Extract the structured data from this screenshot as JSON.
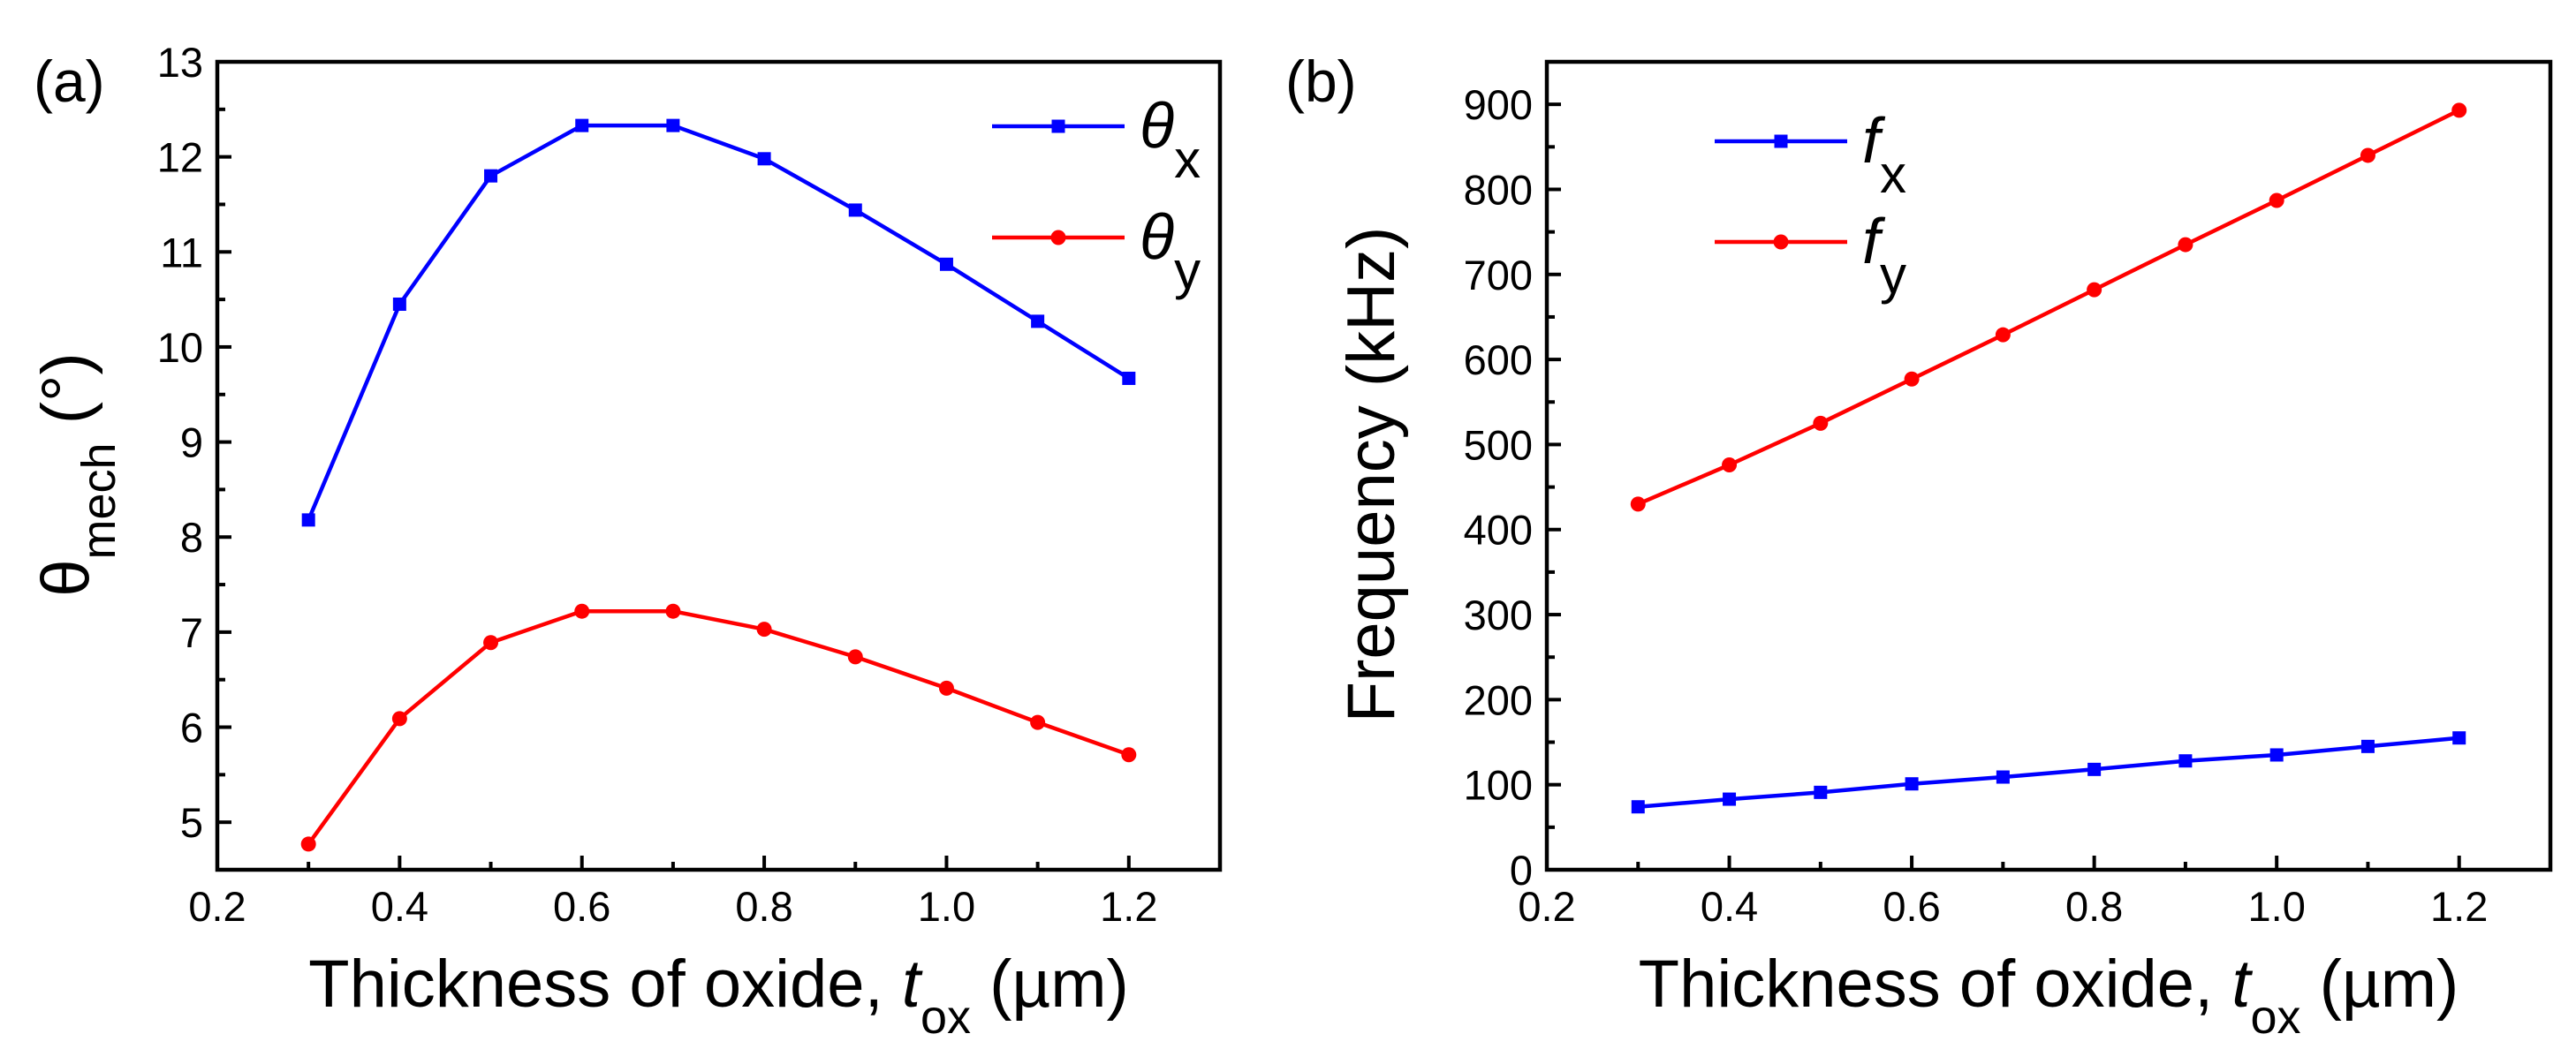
{
  "chart_data": [
    {
      "type": "line",
      "panel_label": "(a)",
      "xlabel": {
        "main": "Thickness of oxide, ",
        "var": "t",
        "sub": "ox",
        "unit": " (µm)"
      },
      "ylabel": {
        "main": "θ",
        "sub": "mech",
        "unit": " (°)"
      },
      "xlim": [
        0.2,
        1.3
      ],
      "ylim": [
        4.5,
        13
      ],
      "xticks": [
        0.2,
        0.4,
        0.6,
        0.8,
        1.0,
        1.2
      ],
      "xtick_labels": [
        "0.2",
        "0.4",
        "0.6",
        "0.8",
        "1.0",
        "1.2"
      ],
      "yticks": [
        5,
        6,
        7,
        8,
        9,
        10,
        11,
        12,
        13
      ],
      "ytick_labels": [
        "5",
        "6",
        "7",
        "8",
        "9",
        "10",
        "11",
        "12",
        "13"
      ],
      "legend_position": "top-right",
      "x": [
        0.3,
        0.4,
        0.5,
        0.6,
        0.7,
        0.8,
        0.9,
        1.0,
        1.1,
        1.2
      ],
      "series": [
        {
          "name": "θx",
          "symbol": "θ",
          "sub": "x",
          "color": "#0000ff",
          "marker": "square",
          "values": [
            8.18,
            10.45,
            11.8,
            12.33,
            12.33,
            11.98,
            11.44,
            10.87,
            10.27,
            9.67
          ]
        },
        {
          "name": "θy",
          "symbol": "θ",
          "sub": "y",
          "color": "#ff0000",
          "marker": "circle",
          "values": [
            4.77,
            6.09,
            6.89,
            7.22,
            7.22,
            7.03,
            6.74,
            6.41,
            6.05,
            5.71
          ]
        }
      ]
    },
    {
      "type": "line",
      "panel_label": "(b)",
      "xlabel": {
        "main": "Thickness of oxide, ",
        "var": "t",
        "sub": "ox",
        "unit": " (µm)"
      },
      "ylabel": {
        "main": "Frequency (kHz)",
        "sub": "",
        "unit": ""
      },
      "xlim": [
        0.2,
        1.3
      ],
      "ylim": [
        0,
        950
      ],
      "xticks": [
        0.2,
        0.4,
        0.6,
        0.8,
        1.0,
        1.2
      ],
      "xtick_labels": [
        "0.2",
        "0.4",
        "0.6",
        "0.8",
        "1.0",
        "1.2"
      ],
      "yticks": [
        0,
        100,
        200,
        300,
        400,
        500,
        600,
        700,
        800,
        900
      ],
      "ytick_labels": [
        "0",
        "100",
        "200",
        "300",
        "400",
        "500",
        "600",
        "700",
        "800",
        "900"
      ],
      "legend_position": "top-left",
      "x": [
        0.3,
        0.4,
        0.5,
        0.6,
        0.7,
        0.8,
        0.9,
        1.0,
        1.1,
        1.2
      ],
      "series": [
        {
          "name": "fx",
          "symbol": "f",
          "sub": "x",
          "color": "#0000ff",
          "marker": "square",
          "values": [
            74,
            83,
            91,
            101,
            109,
            118,
            128,
            135,
            145,
            155
          ]
        },
        {
          "name": "fy",
          "symbol": "f",
          "sub": "y",
          "color": "#ff0000",
          "marker": "circle",
          "values": [
            430,
            476,
            525,
            577,
            629,
            682,
            735,
            787,
            840,
            893
          ]
        }
      ]
    }
  ]
}
